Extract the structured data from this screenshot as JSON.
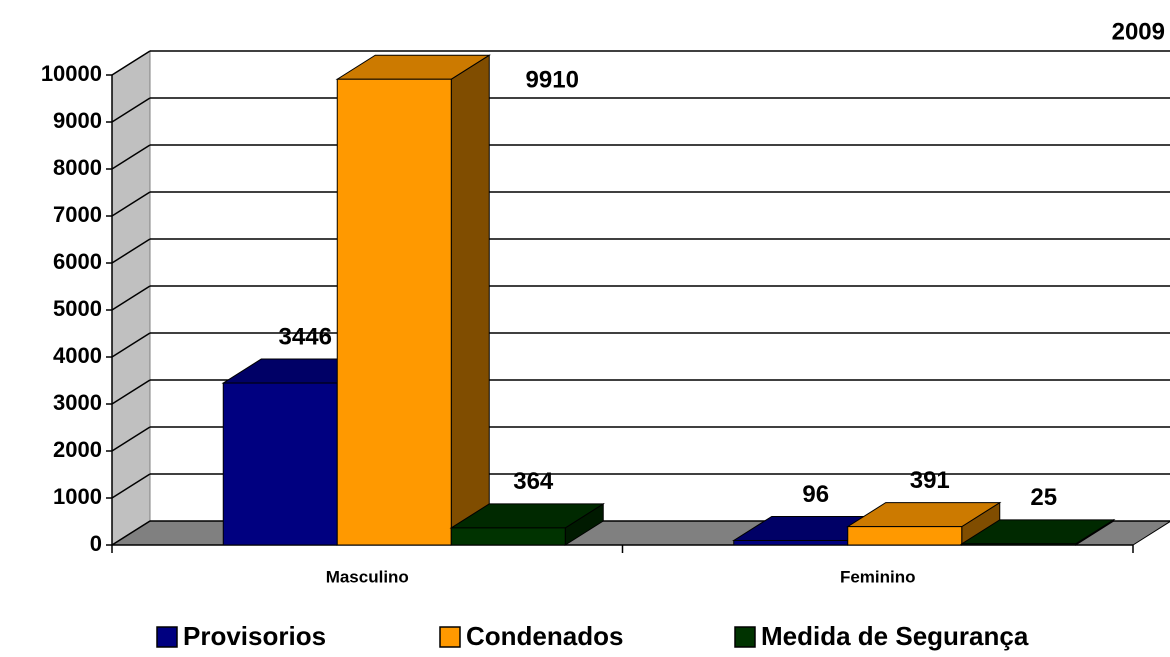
{
  "chart_data": {
    "type": "bar3d",
    "title": "2009",
    "categories": [
      "Masculino",
      "Feminino"
    ],
    "series": [
      {
        "name": "Provisorios",
        "color": "#000080",
        "values": [
          3446,
          96
        ]
      },
      {
        "name": "Condenados",
        "color": "#ff9900",
        "values": [
          9910,
          391
        ]
      },
      {
        "name": "Medida de Segurança",
        "color": "#003300",
        "values": [
          364,
          25
        ]
      }
    ],
    "ylim": [
      0,
      10000
    ],
    "yticks": [
      0,
      1000,
      2000,
      3000,
      4000,
      5000,
      6000,
      7000,
      8000,
      9000,
      10000
    ],
    "grid": true,
    "legend": "bottom"
  }
}
